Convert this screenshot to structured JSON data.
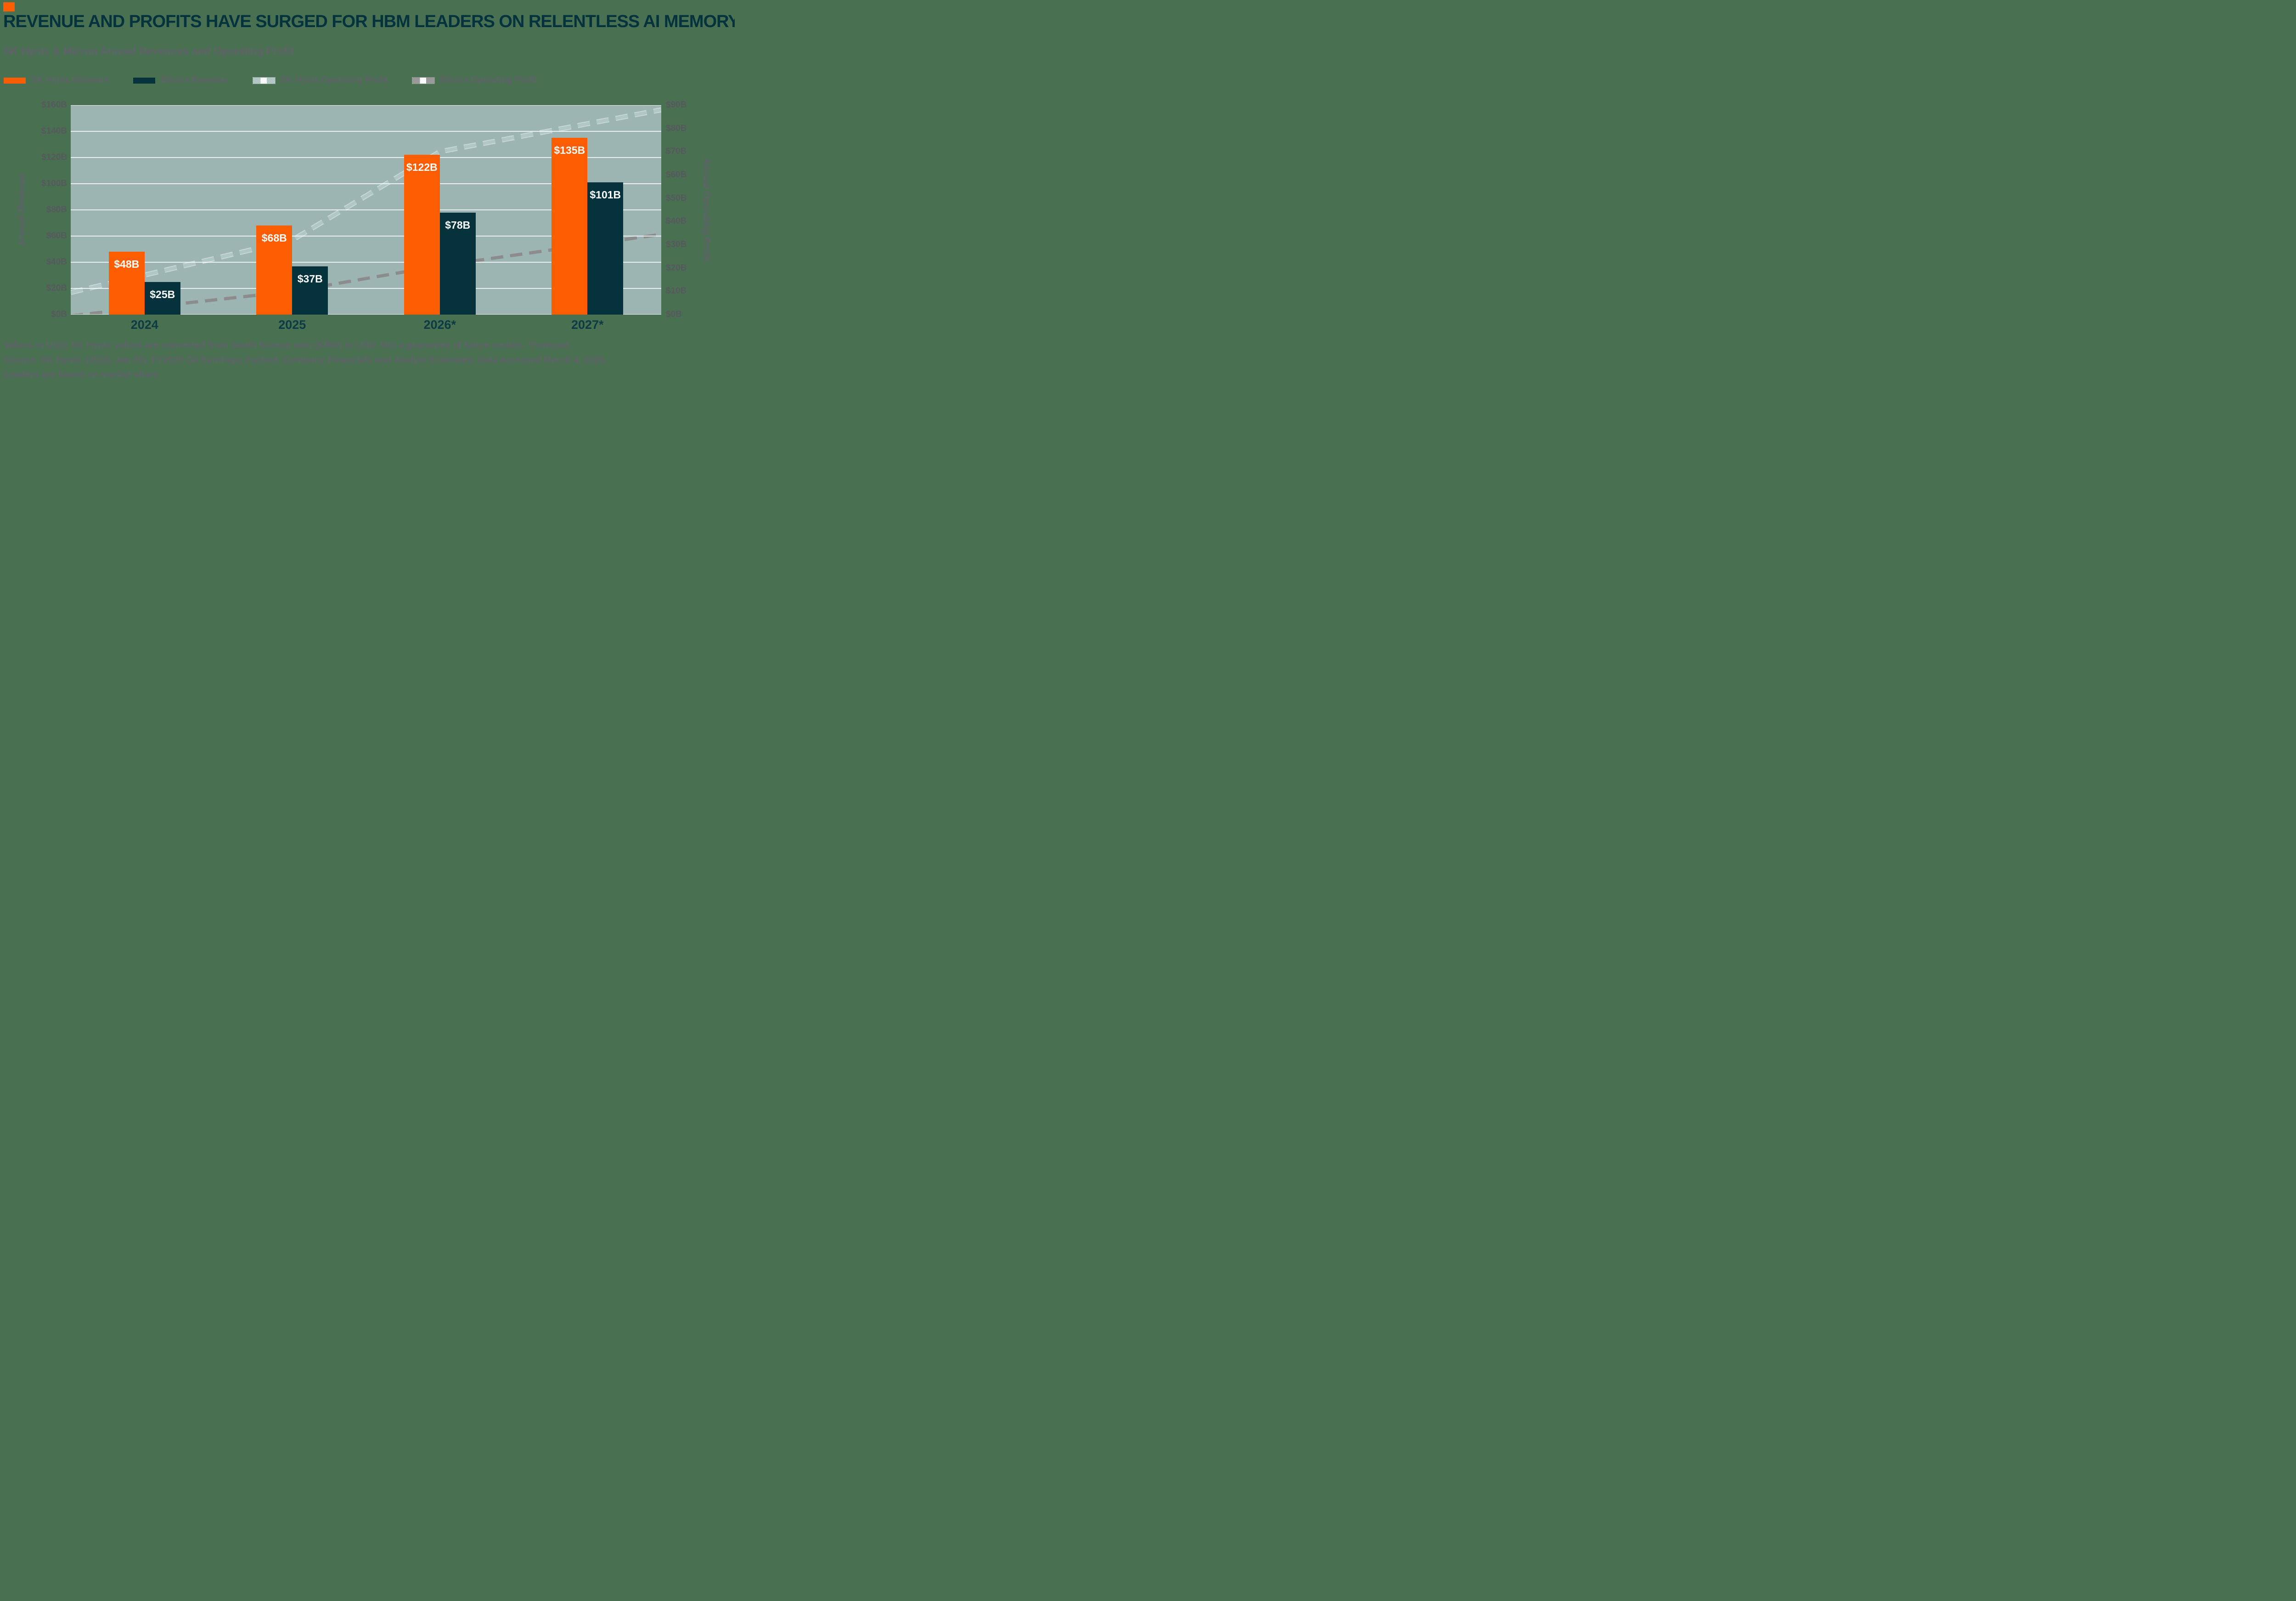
{
  "header": {
    "title": "REVENUE AND PROFITS HAVE SURGED FOR HBM LEADERS ON RELENTLESS AI MEMORY DEMAND",
    "subtitle": "SK Hynix & Micron Annual Revenues and Operating Profit"
  },
  "colors": {
    "page_background": "#4A7052",
    "plot_background": "#9CB5B2",
    "accent_orange": "#FB5D00",
    "sk_hynix_bar": "#FB5D00",
    "micron_bar": "#05323B",
    "sk_hynix_line": "#AFC8C5",
    "micron_line": "#8C8C8C",
    "title_color": "#05333D",
    "text_gray": "#5F6369",
    "x_label_color": "#0C3B45",
    "gridline_color": "#FFFFFF",
    "bar_label_color": "#FFFFFF"
  },
  "legend": {
    "items": [
      {
        "label": "SK Hynix Revenue",
        "style": "solid",
        "color": "#FB5D00"
      },
      {
        "label": "Micron Revenue",
        "style": "solid",
        "color": "#05323B"
      },
      {
        "label": "SK Hynix Operating Profit",
        "style": "dashed",
        "color": "#AFC8C5"
      },
      {
        "label": "Micron Operating Profit",
        "style": "dashed",
        "color": "#999999"
      }
    ]
  },
  "chart_data": {
    "type": "bar",
    "subtype": "grouped bars with two dashed overlay lines on secondary axis",
    "categories": [
      "2024",
      "2025",
      "2026*",
      "2027*"
    ],
    "bar_series": [
      {
        "name": "SK Hynix Revenue",
        "axis": "left",
        "color": "#FB5D00",
        "values": [
          48,
          68,
          122,
          135
        ],
        "labels": [
          "$48B",
          "$68B",
          "$122B",
          "$135B"
        ]
      },
      {
        "name": "Micron Revenue",
        "axis": "left",
        "color": "#05323B",
        "values": [
          25,
          37,
          78,
          101
        ],
        "labels": [
          "$25B",
          "$37B",
          "$78B",
          "$101B"
        ]
      }
    ],
    "line_series": [
      {
        "name": "SK Hynix Operating Profit",
        "axis": "right",
        "color": "#AFC8C5",
        "values": [
          17,
          32,
          70,
          82
        ]
      },
      {
        "name": "Micron Operating Profit",
        "axis": "right",
        "color": "#8C8C8C",
        "values": [
          3,
          10,
          21,
          30
        ]
      }
    ],
    "left_axis": {
      "label": "Annual Revenue",
      "min": 0,
      "max": 160,
      "tick_step": 20,
      "ticks": [
        "$160B",
        "$140B",
        "$120B",
        "$100B",
        "$80B",
        "$60B",
        "$40B",
        "$20B",
        "$0B"
      ]
    },
    "right_axis": {
      "label": "Annual Operating Profit",
      "min": 0,
      "max": 90,
      "tick_step": 10,
      "ticks": [
        "$90B",
        "$80B",
        "$70B",
        "$60B",
        "$50B",
        "$40B",
        "$30B",
        "$20B",
        "$10B",
        "$0B"
      ]
    },
    "grid": "horizontal white gridlines every $20B of left axis",
    "legend_position": "top-left above plot"
  },
  "footer": {
    "line1": "Values in USD; SK Hynix values are converted from South Korean won (KRW) to USD. Not a guarantee of future results. *Forecast.",
    "line2": "Source: SK Hynix. (2026, Jan 29). FY2025 Q4 Earnings; Factset. Company Financials and Analyst Estimates. Data accessed March 4, 2026.",
    "line3": "Leaders are based on market share."
  }
}
